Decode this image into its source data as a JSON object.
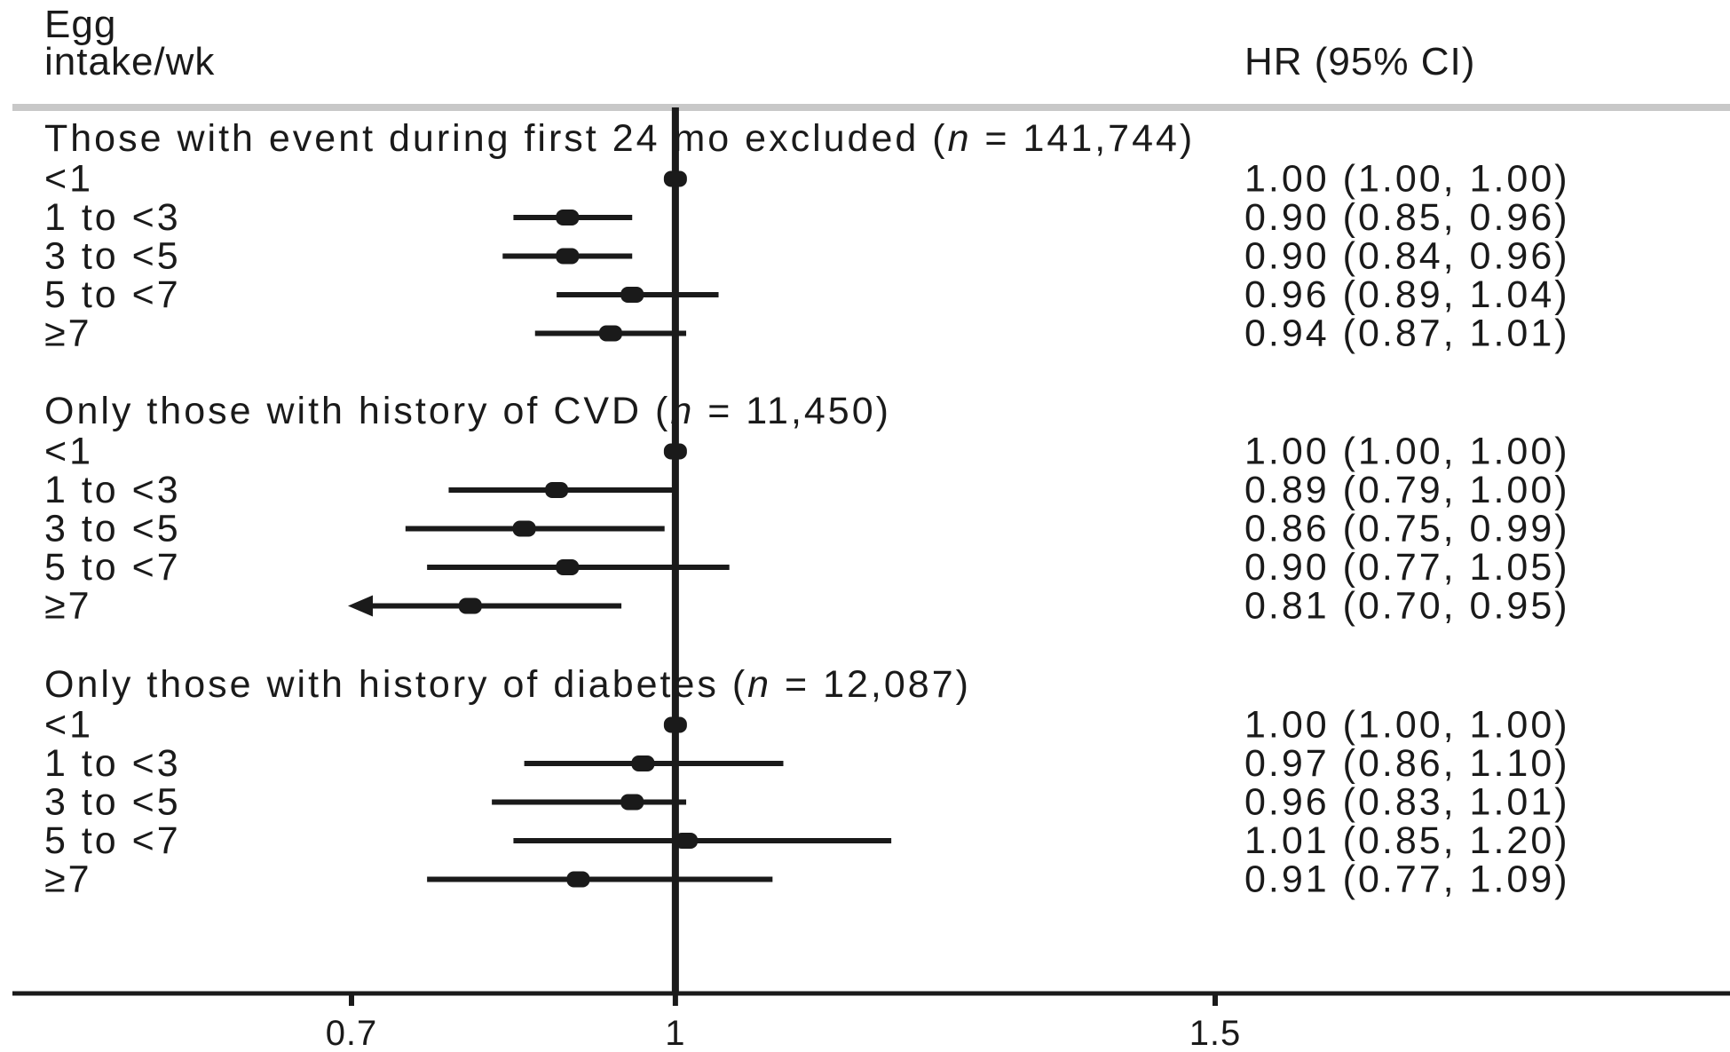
{
  "chart_data": {
    "type": "forest",
    "header": {
      "left_line1": "Egg",
      "left_line2": "intake/wk",
      "right": "HR (95% CI)"
    },
    "x_ticks": [
      "0.7",
      "1",
      "1.5"
    ],
    "x_tick_values": [
      0.7,
      1.0,
      1.5
    ],
    "xlim": [
      0.7,
      1.5
    ],
    "reference_line": 1.0,
    "sections": [
      {
        "title_pre": "Those with event during first 24 mo excluded (",
        "n_symbol": "n",
        "title_post": " = 141,744)",
        "rows": [
          {
            "label": "<1",
            "hr": 1.0,
            "lo": 1.0,
            "hi": 1.0,
            "ci_text": "1.00 (1.00, 1.00)"
          },
          {
            "label": "1 to <3",
            "hr": 0.9,
            "lo": 0.85,
            "hi": 0.96,
            "ci_text": "0.90 (0.85, 0.96)"
          },
          {
            "label": "3 to <5",
            "hr": 0.9,
            "lo": 0.84,
            "hi": 0.96,
            "ci_text": "0.90 (0.84, 0.96)"
          },
          {
            "label": "5 to <7",
            "hr": 0.96,
            "lo": 0.89,
            "hi": 1.04,
            "ci_text": "0.96 (0.89, 1.04)"
          },
          {
            "label": "≥7",
            "hr": 0.94,
            "lo": 0.87,
            "hi": 1.01,
            "ci_text": "0.94 (0.87, 1.01)"
          }
        ]
      },
      {
        "title_pre": "Only those with history of CVD (",
        "n_symbol": "n",
        "title_post": " = 11,450)",
        "rows": [
          {
            "label": "<1",
            "hr": 1.0,
            "lo": 1.0,
            "hi": 1.0,
            "ci_text": "1.00 (1.00, 1.00)"
          },
          {
            "label": "1 to <3",
            "hr": 0.89,
            "lo": 0.79,
            "hi": 1.0,
            "ci_text": "0.89 (0.79, 1.00)"
          },
          {
            "label": "3 to <5",
            "hr": 0.86,
            "lo": 0.75,
            "hi": 0.99,
            "ci_text": "0.86 (0.75, 0.99)"
          },
          {
            "label": "5 to <7",
            "hr": 0.9,
            "lo": 0.77,
            "hi": 1.05,
            "ci_text": "0.90 (0.77, 1.05)"
          },
          {
            "label": "≥7",
            "hr": 0.81,
            "lo": 0.7,
            "hi": 0.95,
            "ci_text": "0.81 (0.70, 0.95)",
            "arrow_left": true
          }
        ]
      },
      {
        "title_pre": "Only those with history of diabetes  (",
        "n_symbol": "n",
        "title_post": " = 12,087)",
        "rows": [
          {
            "label": "<1",
            "hr": 1.0,
            "lo": 1.0,
            "hi": 1.0,
            "ci_text": "1.00 (1.00, 1.00)"
          },
          {
            "label": "1 to <3",
            "hr": 0.97,
            "lo": 0.86,
            "hi": 1.1,
            "ci_text": "0.97 (0.86, 1.10)"
          },
          {
            "label": "3 to <5",
            "hr": 0.96,
            "lo": 0.83,
            "hi": 1.01,
            "ci_text": "0.96 (0.83, 1.01)"
          },
          {
            "label": "5 to <7",
            "hr": 1.01,
            "lo": 0.85,
            "hi": 1.2,
            "ci_text": "1.01 (0.85, 1.20)"
          },
          {
            "label": "≥7",
            "hr": 0.91,
            "lo": 0.77,
            "hi": 1.09,
            "ci_text": "0.91 (0.77, 1.09)"
          }
        ]
      }
    ],
    "colors": {
      "ink": "#1a1a1a",
      "header_rule": "#c8c8c8"
    }
  }
}
